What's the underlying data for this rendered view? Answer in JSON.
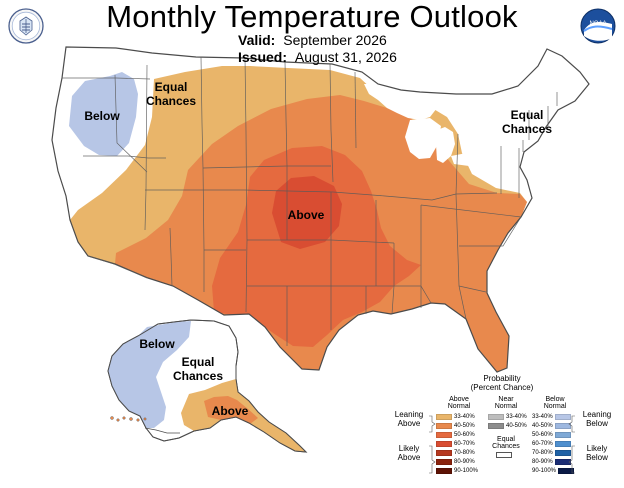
{
  "header": {
    "title": "Monthly Temperature Outlook",
    "valid_label": "Valid:",
    "valid_value": "September 2026",
    "issued_label": "Issued:",
    "issued_value": "August 31, 2026"
  },
  "map_labels": {
    "below_west": "Below",
    "equal_west": "Equal\nChances",
    "above_center": "Above",
    "equal_east": "Equal\nChances",
    "below_alaska": "Below",
    "equal_alaska": "Equal\nChances",
    "above_alaska": "Above"
  },
  "legend": {
    "title": "Probability\n(Percent Chance)",
    "above_head": "Above\nNormal",
    "near_head": "Near\nNormal",
    "below_head": "Below\nNormal",
    "equal_head": "Equal\nChances",
    "leaning_above": "Leaning\nAbove",
    "likely_above": "Likely\nAbove",
    "leaning_below": "Leaning\nBelow",
    "likely_below": "Likely\nBelow",
    "above_ranges": [
      "33-40%",
      "40-50%",
      "50-60%",
      "60-70%",
      "70-80%",
      "80-90%",
      "90-100%"
    ],
    "near_ranges": [
      "33-40%",
      "40-50%"
    ],
    "below_ranges": [
      "33-40%",
      "40-50%",
      "50-60%",
      "60-70%",
      "70-80%",
      "80-90%",
      "90-100%"
    ]
  },
  "colors": {
    "above": [
      "#e9b56a",
      "#e8894d",
      "#e56a3f",
      "#d94d32",
      "#b6381f",
      "#8a230d",
      "#5e1305"
    ],
    "near": [
      "#bdbdbd",
      "#8d8d8d"
    ],
    "below": [
      "#b7c6e6",
      "#9eb8e0",
      "#7fa9d6",
      "#4f8fce",
      "#1f61a6",
      "#1b2d75",
      "#0a1a46"
    ],
    "equal": "#ffffff",
    "border": "#5a5a5a",
    "outline": "#4b4b4b"
  }
}
